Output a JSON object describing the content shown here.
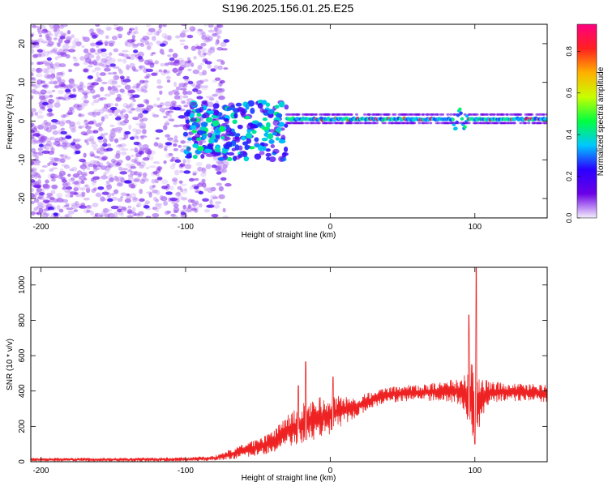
{
  "title": "S196.2025.156.01.25.E25",
  "chart_data": [
    {
      "type": "heatmap",
      "xlabel": "Height of straight line (km)",
      "ylabel": "Frequency (Hz)",
      "xlim": [
        -207,
        150
      ],
      "ylim": [
        -25,
        25
      ],
      "xticks": [
        -200,
        -100,
        0,
        100
      ],
      "yticks": [
        -20,
        -10,
        0,
        10,
        20
      ],
      "grid": false,
      "colorbar": {
        "label": "Normalized spectral amplitude",
        "range": [
          0.0,
          0.93
        ],
        "ticks": [
          0.0,
          0.2,
          0.4,
          0.6,
          0.8
        ],
        "colormap": "rainbow",
        "colors": [
          "#f4eefc",
          "#6b00e6",
          "#2a00ff",
          "#00c8ff",
          "#00ff40",
          "#c8ff00",
          "#ffb000",
          "#ff2020",
          "#ff0080"
        ]
      },
      "features": {
        "carrier_line": {
          "frequency": 0.5,
          "x_start": -30,
          "x_end": 150,
          "amplitude": 0.6
        },
        "doppler_streaks": {
          "x_range": [
            -207,
            -70
          ],
          "slope_hz_per_km": -0.25,
          "amplitude": 0.2
        },
        "transition_blob": {
          "x_range": [
            -100,
            -30
          ],
          "frequency_range": [
            -10,
            5
          ],
          "amplitude": 0.35
        }
      }
    },
    {
      "type": "line",
      "xlabel": "Height of straight line (km)",
      "ylabel": "SNR (10 * v/v)",
      "xlim": [
        -207,
        150
      ],
      "ylim": [
        0,
        1100
      ],
      "xticks": [
        -200,
        -100,
        0,
        100
      ],
      "yticks": [
        0,
        200,
        400,
        600,
        800,
        1000
      ],
      "grid": false,
      "series": [
        {
          "color": "#ee2222",
          "x": [
            -207,
            -150,
            -100,
            -80,
            -60,
            -40,
            -30,
            -20,
            -10,
            0,
            10,
            20,
            30,
            40,
            60,
            80,
            90,
            95,
            100,
            105,
            110,
            120,
            140,
            150
          ],
          "base": [
            12,
            12,
            14,
            20,
            60,
            110,
            170,
            215,
            245,
            265,
            290,
            320,
            355,
            380,
            390,
            400,
            395,
            380,
            330,
            360,
            390,
            395,
            390,
            385
          ],
          "noise": [
            10,
            10,
            12,
            15,
            40,
            60,
            90,
            110,
            120,
            110,
            80,
            60,
            45,
            45,
            50,
            60,
            80,
            180,
            250,
            120,
            70,
            50,
            50,
            50
          ],
          "spikes": [
            {
              "x": -17,
              "y": 565
            },
            {
              "x": -22,
              "y": 430
            },
            {
              "x": 2,
              "y": 480
            },
            {
              "x": 101,
              "y": 1100
            },
            {
              "x": 96,
              "y": 830
            },
            {
              "x": 100,
              "y": 100
            }
          ]
        }
      ]
    }
  ]
}
